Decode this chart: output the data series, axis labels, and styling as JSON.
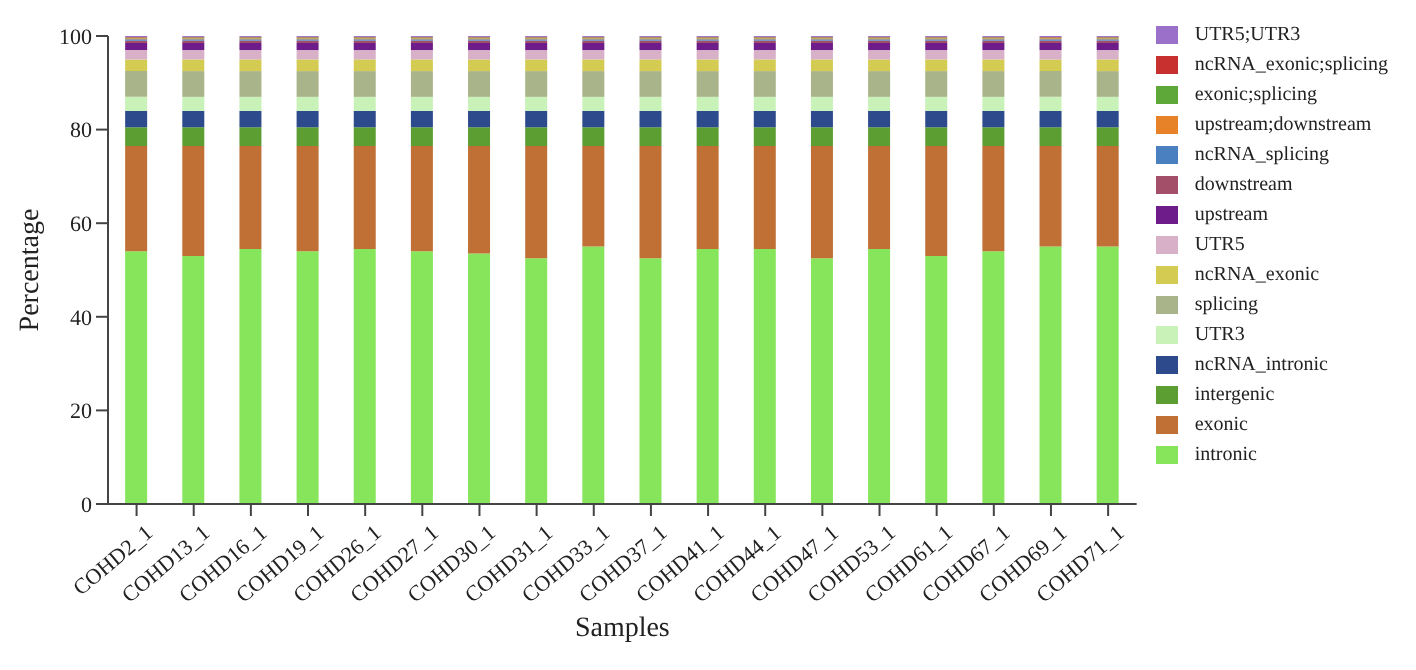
{
  "chart_data": {
    "type": "bar",
    "stacked": true,
    "xlabel": "Samples",
    "ylabel": "Percentage",
    "legend": "right",
    "ylim": [
      0,
      100
    ],
    "yticks": [
      0,
      20,
      40,
      60,
      80,
      100
    ],
    "grid": false,
    "categories": [
      "COHD2_1",
      "COHD13_1",
      "COHD16_1",
      "COHD19_1",
      "COHD26_1",
      "COHD27_1",
      "COHD30_1",
      "COHD31_1",
      "COHD33_1",
      "COHD37_1",
      "COHD41_1",
      "COHD44_1",
      "COHD47_1",
      "COHD53_1",
      "COHD61_1",
      "COHD67_1",
      "COHD69_1",
      "COHD71_1"
    ],
    "series": [
      {
        "name": "intronic",
        "color": "#86e55a",
        "values": [
          54,
          53,
          54.5,
          54,
          54.5,
          54,
          53.5,
          52.5,
          55,
          52.5,
          54.5,
          54.5,
          52.5,
          54.5,
          53,
          54,
          55,
          55
        ]
      },
      {
        "name": "exonic",
        "color": "#c07035",
        "values": [
          22.5,
          23.5,
          22,
          22.5,
          22,
          22.5,
          23,
          24,
          21.5,
          24,
          22,
          22,
          24,
          22,
          23.5,
          22.5,
          21.5,
          21.5
        ]
      },
      {
        "name": "intergenic",
        "color": "#5c9e32",
        "values": [
          4,
          4,
          4,
          4,
          4,
          4,
          4,
          4,
          4,
          4,
          4,
          4,
          4,
          4,
          4,
          4,
          4,
          4
        ]
      },
      {
        "name": "ncRNA_intronic",
        "color": "#2d4a8c",
        "values": [
          3.5,
          3.5,
          3.5,
          3.5,
          3.5,
          3.5,
          3.5,
          3.5,
          3.5,
          3.5,
          3.5,
          3.5,
          3.5,
          3.5,
          3.5,
          3.5,
          3.5,
          3.5
        ]
      },
      {
        "name": "UTR3",
        "color": "#c8f2b8",
        "values": [
          3,
          3,
          3,
          3,
          3,
          3,
          3,
          3,
          3,
          3,
          3,
          3,
          3,
          3,
          3,
          3,
          3,
          3
        ]
      },
      {
        "name": "splicing",
        "color": "#a9b48a",
        "values": [
          5.5,
          5.5,
          5.5,
          5.5,
          5.5,
          5.5,
          5.5,
          5.5,
          5.5,
          5.5,
          5.5,
          5.5,
          5.5,
          5.5,
          5.5,
          5.5,
          5.5,
          5.5
        ]
      },
      {
        "name": "ncRNA_exonic",
        "color": "#d4cc52",
        "values": [
          2.5,
          2.5,
          2.5,
          2.5,
          2.5,
          2.5,
          2.5,
          2.5,
          2.5,
          2.5,
          2.5,
          2.5,
          2.5,
          2.5,
          2.5,
          2.5,
          2.5,
          2.5
        ]
      },
      {
        "name": "UTR5",
        "color": "#d8b0c8",
        "values": [
          2,
          2,
          2,
          2,
          2,
          2,
          2,
          2,
          2,
          2,
          2,
          2,
          2,
          2,
          2,
          2,
          2,
          2
        ]
      },
      {
        "name": "upstream",
        "color": "#6e1c8a",
        "values": [
          1.5,
          1.5,
          1.5,
          1.5,
          1.5,
          1.5,
          1.5,
          1.5,
          1.5,
          1.5,
          1.5,
          1.5,
          1.5,
          1.5,
          1.5,
          1.5,
          1.5,
          1.5
        ]
      },
      {
        "name": "downstream",
        "color": "#a34f6a",
        "values": [
          0.5,
          0.5,
          0.5,
          0.5,
          0.5,
          0.5,
          0.5,
          0.5,
          0.5,
          0.5,
          0.5,
          0.5,
          0.5,
          0.5,
          0.5,
          0.5,
          0.5,
          0.5
        ]
      },
      {
        "name": "ncRNA_splicing",
        "color": "#4a7fc0",
        "values": [
          0.3,
          0.3,
          0.3,
          0.3,
          0.3,
          0.3,
          0.3,
          0.3,
          0.3,
          0.3,
          0.3,
          0.3,
          0.3,
          0.3,
          0.3,
          0.3,
          0.3,
          0.3
        ]
      },
      {
        "name": "upstream;downstream",
        "color": "#e88228",
        "values": [
          0.2,
          0.2,
          0.2,
          0.2,
          0.2,
          0.2,
          0.2,
          0.2,
          0.2,
          0.2,
          0.2,
          0.2,
          0.2,
          0.2,
          0.2,
          0.2,
          0.2,
          0.2
        ]
      },
      {
        "name": "exonic;splicing",
        "color": "#5ea83a",
        "values": [
          0.2,
          0.2,
          0.2,
          0.2,
          0.2,
          0.2,
          0.2,
          0.2,
          0.2,
          0.2,
          0.2,
          0.2,
          0.2,
          0.2,
          0.2,
          0.2,
          0.2,
          0.2
        ]
      },
      {
        "name": "ncRNA_exonic;splicing",
        "color": "#c83030",
        "values": [
          0.1,
          0.1,
          0.1,
          0.1,
          0.1,
          0.1,
          0.1,
          0.1,
          0.1,
          0.1,
          0.1,
          0.1,
          0.1,
          0.1,
          0.1,
          0.1,
          0.1,
          0.1
        ]
      },
      {
        "name": "UTR5;UTR3",
        "color": "#9a70c8",
        "values": [
          0.2,
          0.2,
          0.2,
          0.2,
          0.2,
          0.2,
          0.2,
          0.2,
          0.2,
          0.2,
          0.2,
          0.2,
          0.2,
          0.2,
          0.2,
          0.2,
          0.2,
          0.2
        ]
      }
    ]
  }
}
